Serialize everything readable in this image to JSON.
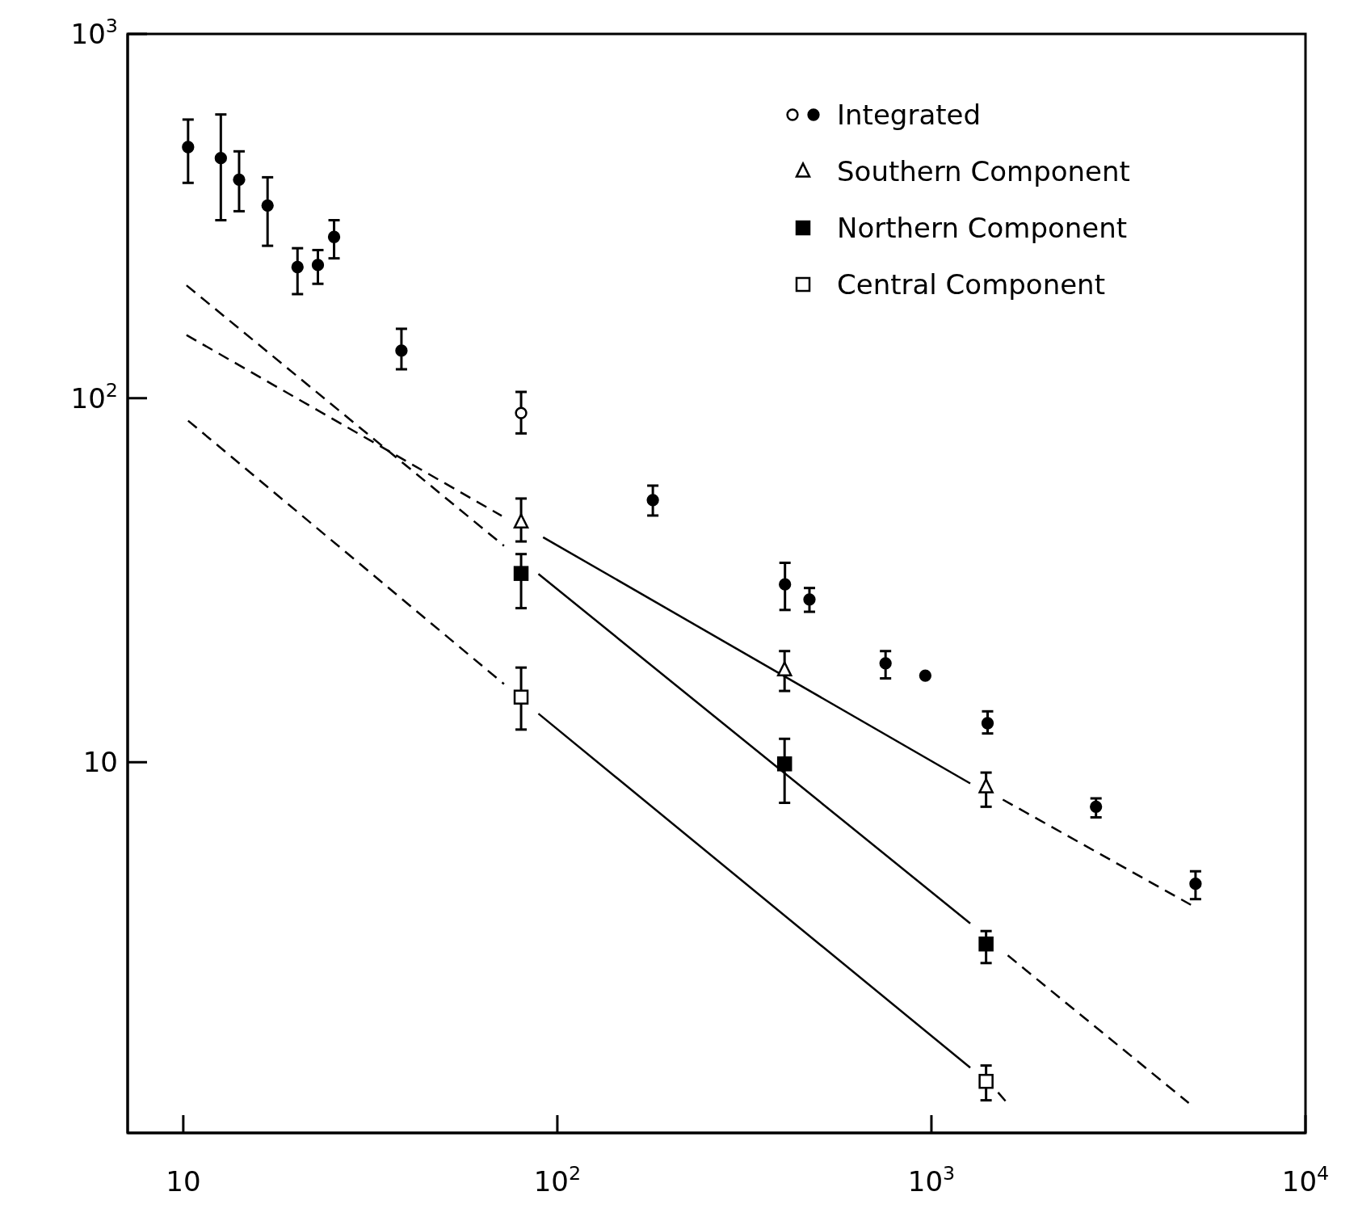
{
  "chart_data": {
    "type": "scatter",
    "log": "xy",
    "grid": false,
    "legend": "top right",
    "xlim": [
      7.1,
      10000
    ],
    "ylim": [
      0.96,
      1000
    ],
    "xticks": [
      10,
      {
        "value": 100,
        "label": "10$^{2}$"
      },
      {
        "value": 1000,
        "label": "10$^{3}$"
      },
      {
        "value": 10000,
        "label": "10$^{4}$"
      }
    ],
    "yticks": [
      10,
      {
        "value": 100,
        "label": "10$^{2}$"
      },
      {
        "value": 1000,
        "label": "10$^{3}$"
      }
    ],
    "series": [
      {
        "name": "Integrated",
        "marker": "circle",
        "colors": [
          "#000000",
          "#000000",
          "#000000",
          "#000000",
          "#000000",
          "#000000",
          "#000000",
          "#000000",
          "#ffffff",
          "#000000",
          "#000000",
          "#000000",
          "#000000",
          "#000000",
          "#000000",
          "#000000",
          "#000000"
        ],
        "x": [
          10.3,
          12.6,
          14.1,
          16.8,
          20.2,
          22.9,
          25.3,
          38.3,
          80,
          180,
          406,
          472,
          754,
          963,
          1413,
          2754,
          5082
        ],
        "values": [
          489,
          456,
          398,
          338,
          229,
          232,
          277,
          135,
          91,
          52.5,
          30.8,
          28,
          18.7,
          17.3,
          12.8,
          7.55,
          4.64
        ],
        "errors": [
          [
            390,
            582
          ],
          [
            308,
            601
          ],
          [
            326,
            476
          ],
          [
            262,
            404
          ],
          [
            193,
            258
          ],
          [
            206,
            255
          ],
          [
            242,
            308
          ],
          [
            120,
            155
          ],
          [
            80,
            104
          ],
          [
            47.6,
            57.5
          ],
          [
            26.2,
            35.3
          ],
          [
            25.9,
            30.1
          ],
          [
            17.0,
            20.2
          ],
          null,
          [
            12.0,
            13.8
          ],
          [
            7.06,
            7.96
          ],
          [
            4.21,
            5.02
          ]
        ]
      },
      {
        "name": "Southern Component",
        "marker": "triangle",
        "color": "#ffffff",
        "x": [
          80,
          405,
          1400
        ],
        "values": [
          45.6,
          17.9,
          8.55
        ],
        "errors": [
          [
            40.4,
            53
          ],
          [
            15.7,
            20.2
          ],
          [
            7.55,
            9.37
          ]
        ]
      },
      {
        "name": "Northern Component",
        "marker": "square",
        "color": "#000000",
        "x": [
          80,
          405,
          1400
        ],
        "values": [
          33,
          9.9,
          3.17
        ],
        "errors": [
          [
            26.5,
            37.3
          ],
          [
            7.74,
            11.6
          ],
          [
            2.81,
            3.44
          ]
        ]
      },
      {
        "name": "Central Component",
        "marker": "square",
        "color": "#ffffff",
        "x": [
          80,
          1400
        ],
        "values": [
          15.1,
          1.33
        ],
        "errors": [
          [
            12.3,
            18.2
          ],
          [
            1.18,
            1.47
          ]
        ]
      },
      {
        "type": "line",
        "line_style": "dashed",
        "color": "#000000",
        "x": [
          10.2,
          71
        ],
        "values": [
          149,
          47.5
        ]
      },
      {
        "type": "line",
        "line_style": "solid",
        "color": "#000000",
        "x": [
          91.6,
          1270
        ],
        "values": [
          41.5,
          8.75
        ]
      },
      {
        "type": "line",
        "line_style": "dashed",
        "color": "#000000",
        "x": [
          1552,
          4940
        ],
        "values": [
          7.9,
          4.06
        ]
      },
      {
        "type": "line",
        "line_style": "dashed",
        "color": "#000000",
        "x": [
          10.2,
          72
        ],
        "values": [
          204,
          39.3
        ]
      },
      {
        "type": "line",
        "line_style": "solid",
        "color": "#000000",
        "x": [
          89,
          1270
        ],
        "values": [
          32.9,
          3.61
        ]
      },
      {
        "type": "line",
        "line_style": "dashed",
        "color": "#000000",
        "x": [
          1600,
          4875
        ],
        "values": [
          2.95,
          1.16
        ]
      },
      {
        "type": "line",
        "line_style": "dashed",
        "color": "#000000",
        "x": [
          10.3,
          72
        ],
        "values": [
          86.7,
          16.4
        ]
      },
      {
        "type": "line",
        "line_style": "solid",
        "color": "#000000",
        "x": [
          89,
          1270
        ],
        "values": [
          13.6,
          1.45
        ]
      },
      {
        "type": "line",
        "line_style": "dashed",
        "color": "#000000",
        "x": [
          1507,
          1618
        ],
        "values": [
          1.24,
          1.14
        ]
      }
    ]
  }
}
